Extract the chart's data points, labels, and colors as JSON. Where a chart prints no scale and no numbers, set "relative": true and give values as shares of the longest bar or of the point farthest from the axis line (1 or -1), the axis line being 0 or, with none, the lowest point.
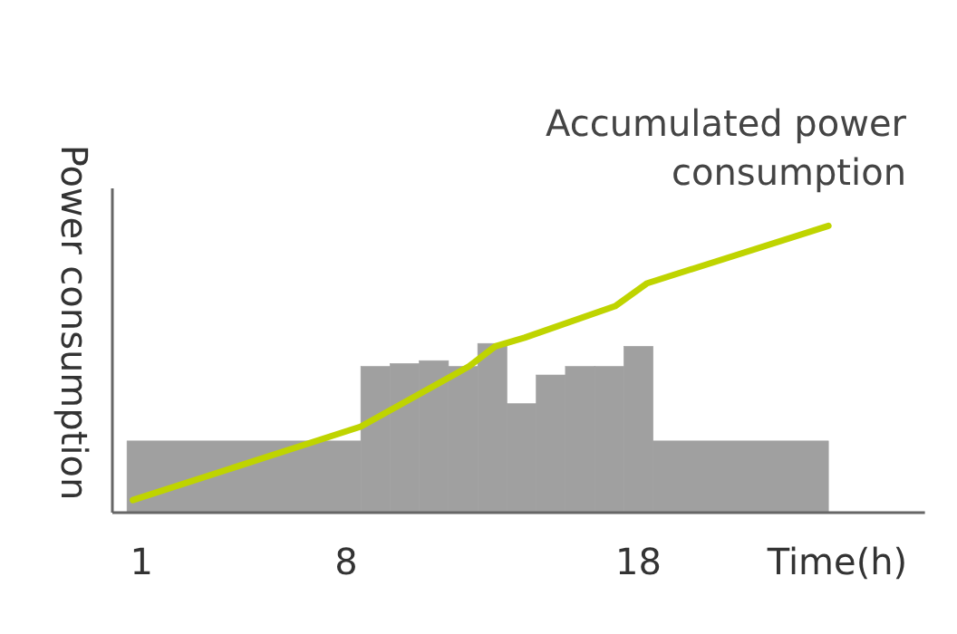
{
  "chart_data": {
    "type": "histogram",
    "xlabel": "Time(h)",
    "ylabel": "Power consumption",
    "relative": true,
    "xlim": [
      0,
      27.8
    ],
    "xticks": [
      1,
      8,
      18
    ],
    "bins": [
      0.5,
      8.5,
      9.5,
      10.5,
      11.5,
      12.5,
      13.5,
      14.5,
      15.5,
      16.5,
      17.5,
      18.5,
      24.5
    ],
    "values": [
      0.25,
      0.51,
      0.52,
      0.53,
      0.51,
      0.59,
      0.38,
      0.48,
      0.51,
      0.51,
      0.58,
      0.25
    ],
    "color": "#a0a0a0",
    "series": [
      {
        "type": "line",
        "name": "Accumulated power consumption",
        "color": "#bfd400",
        "x": [
          0.7,
          8.5,
          12.2,
          13.1,
          14.1,
          17.2,
          18.3,
          24.5
        ],
        "values": [
          0.044,
          0.3,
          0.51,
          0.58,
          0.61,
          0.72,
          0.8,
          1
        ]
      }
    ]
  }
}
